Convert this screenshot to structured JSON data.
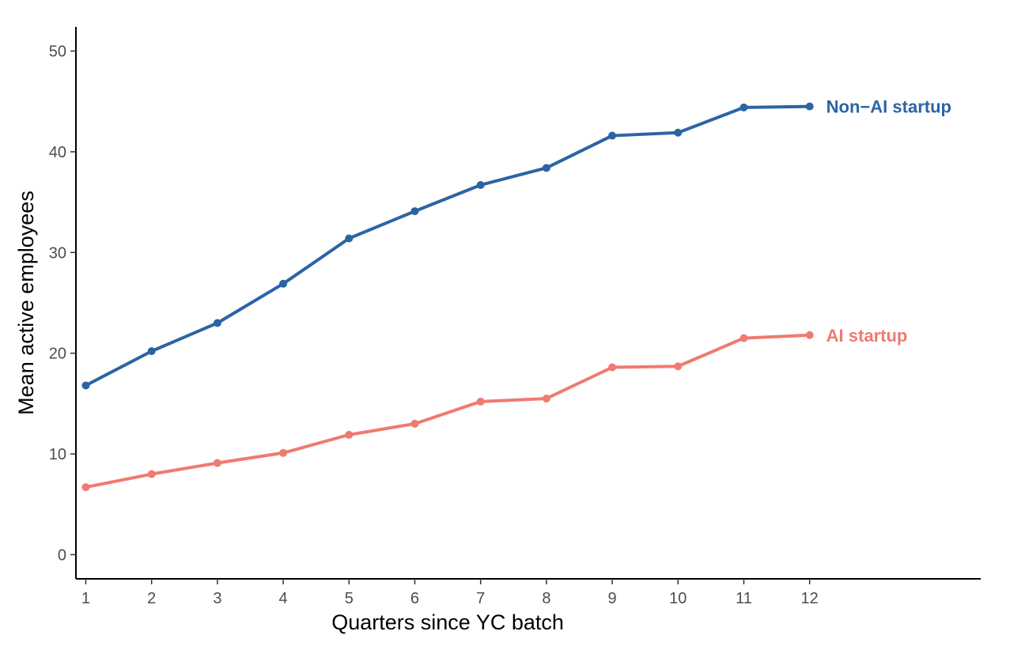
{
  "chart_data": {
    "type": "line",
    "title": "",
    "xlabel": "Quarters since YC batch",
    "ylabel": "Mean active employees",
    "x": [
      1,
      2,
      3,
      4,
      5,
      6,
      7,
      8,
      9,
      10,
      11,
      12
    ],
    "x_ticks": [
      "1",
      "2",
      "3",
      "4",
      "5",
      "6",
      "7",
      "8",
      "9",
      "10",
      "11",
      "12"
    ],
    "y_ticks": [
      "0",
      "10",
      "20",
      "30",
      "40",
      "50"
    ],
    "ylim": [
      -2.4,
      52.4
    ],
    "xlim": [
      0.85,
      14.6
    ],
    "grid": false,
    "legend": "direct labels at line ends (right)",
    "series": [
      {
        "name": "Non−AI startup",
        "color": "#2b64a4",
        "values": [
          16.8,
          20.2,
          23.0,
          26.9,
          31.4,
          34.1,
          36.7,
          38.4,
          41.6,
          41.9,
          44.4,
          44.5
        ]
      },
      {
        "name": "AI startup",
        "color": "#f07a70",
        "values": [
          6.7,
          8.0,
          9.1,
          10.1,
          11.9,
          13.0,
          15.2,
          15.5,
          18.6,
          18.7,
          21.5,
          21.8
        ]
      }
    ]
  }
}
